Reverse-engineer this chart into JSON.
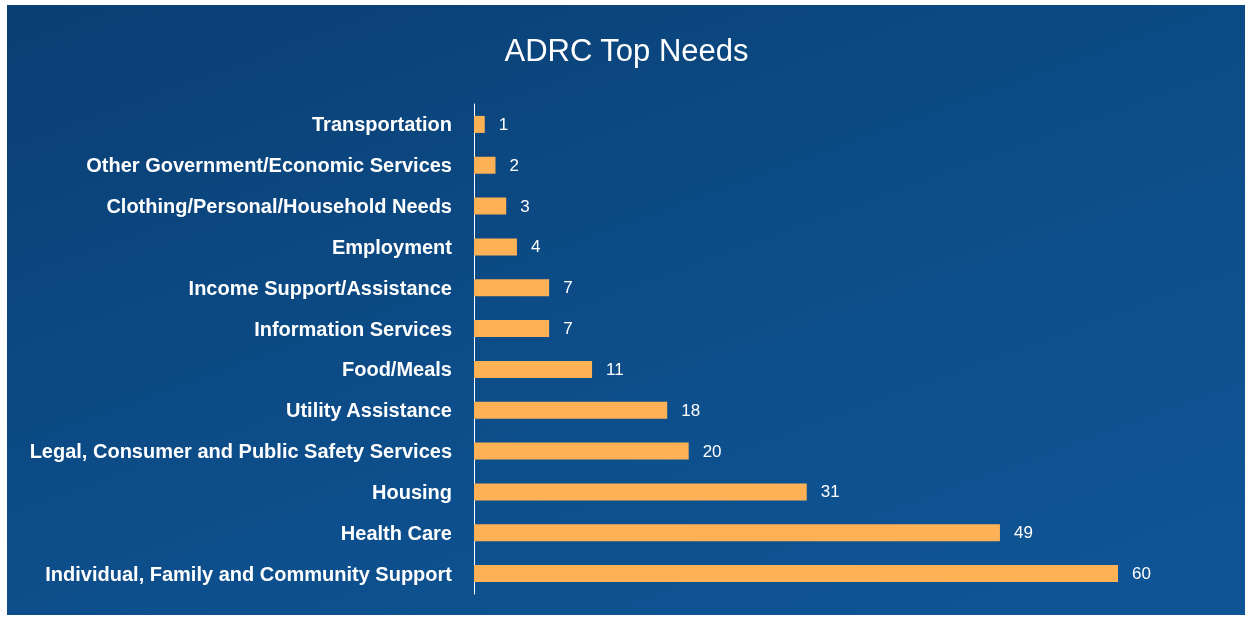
{
  "chart_data": {
    "type": "bar",
    "title": "ADRC Top Needs",
    "orientation": "horizontal",
    "data_labels": true,
    "color": "#ffb255",
    "categories": [
      "Transportation",
      "Other Government/Economic Services",
      "Clothing/Personal/Household Needs",
      "Employment",
      "Income Support/Assistance",
      "Information Services",
      "Food/Meals",
      "Utility Assistance",
      "Legal, Consumer and Public Safety Services",
      "Housing",
      "Health Care",
      "Individual, Family and Community Support"
    ],
    "values": [
      1,
      2,
      3,
      4,
      7,
      7,
      11,
      18,
      20,
      31,
      49,
      60
    ]
  }
}
